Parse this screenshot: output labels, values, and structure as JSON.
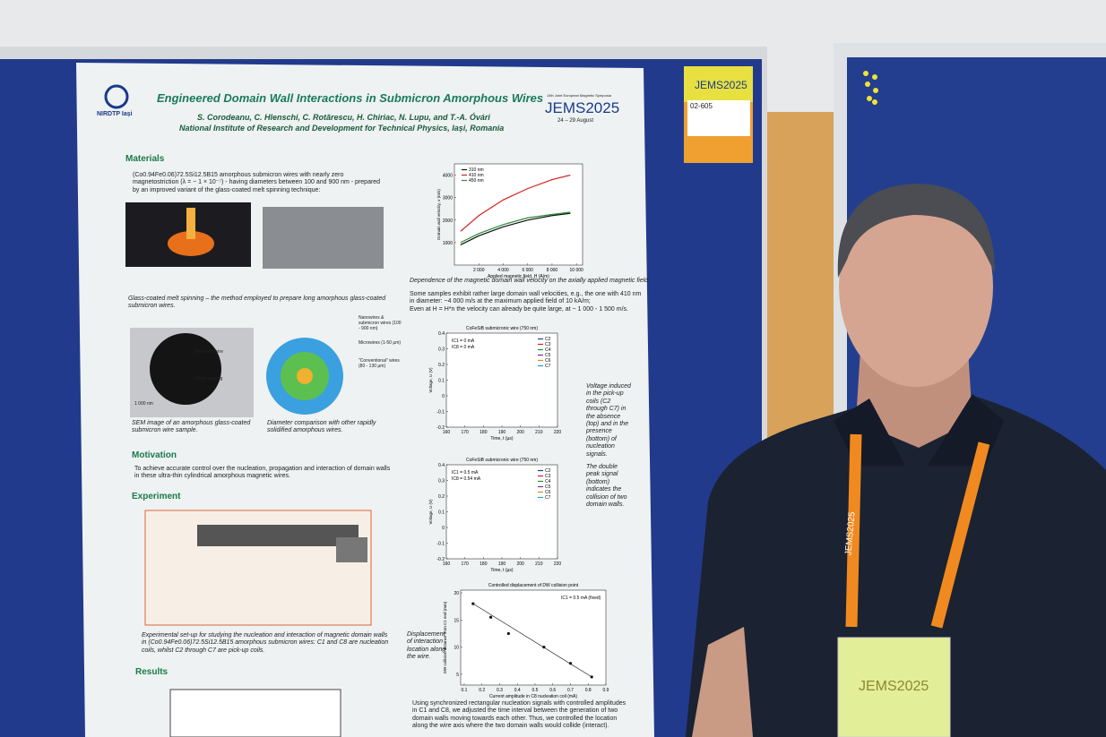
{
  "poster": {
    "logo": "NIRDTP Iași",
    "title": "Engineered Domain Wall Interactions in Submicron Amorphous Wires",
    "authors": "S. Corodeanu, C. Hlenschi, C. Rotărescu, H. Chiriac, N. Lupu, and T.-A. Óvári",
    "institute": "National Institute of Research and Development for Technical Physics, Iași, Romania",
    "conference": {
      "name": "14th Joint European Magnetic Symposia",
      "logo": "JEMS2025",
      "dates": "24 – 29 August"
    },
    "materials": {
      "heading": "Materials",
      "text": "(Co0.94Fe0.06)72.5Si12.5B15 amorphous submicron wires with nearly zero magnetostriction (λ = − 1 × 10⁻⁷) - having diameters between 100 and 900 nm - prepared by an improved variant of the glass-coated melt spinning technique:",
      "caption1": "Glass-coated melt spinning – the method employed to prepare long amorphous glass-coated submicron wires.",
      "sem_labels": [
        "Magnetic wire",
        "Glass coating",
        "1 000 nm"
      ],
      "diameter_labels": [
        "Nanowires & submicron wires (100 - 900 nm)",
        "Microwires (1-50 µm)",
        "\"Conventional\" wires (80 - 130 µm)"
      ],
      "caption2": "SEM image of an amorphous glass-coated submicron wire sample.",
      "caption3": "Diameter comparison with other rapidly solidified amorphous wires."
    },
    "motivation": {
      "heading": "Motivation",
      "text": "To achieve accurate control over the nucleation, propagation and interaction of domain walls in these ultra-thin cylindrical amorphous magnetic wires."
    },
    "experiment": {
      "heading": "Experiment",
      "caption": "Experimental set-up for studying the nucleation and interaction of magnetic domain walls in (Co0.94Fe0.06)72.5Si12.5B15 amorphous submicron wires: C1 and C8 are nucleation coils, whilst C2 through C7 are pick-up coils."
    },
    "results": {
      "heading": "Results"
    },
    "velocity_caption": "Dependence of the magnetic domain wall velocity on the axially applied magnetic field.",
    "velocity_bullets": [
      "Some samples exhibit rather large domain wall velocities, e.g., the one with 410 nm in diameter: ~4 000 m/s at the maximum applied field of 10 kA/m;",
      "Even at H = H*n the velocity can already be quite large, at ~ 1 000 - 1 500 m/s."
    ],
    "voltage_note": "Voltage induced in the pick-up coils (C2 through C7) in the absence (top) and in the presence (bottom) of nucleation signals.",
    "peak_note": "The double peak signal (bottom) indicates the collision of two domain walls.",
    "displacement_note": "Displacement of interaction location along the wire.",
    "bottom_caption": "Using synchronized rectangular nucleation signals with controlled amplitudes in C1 and C8, we adjusted the time interval between the generation of two domain walls moving towards each other. Thus, we controlled the location along the wire axis where the two domain walls would collide (interact)."
  },
  "sticker": {
    "logo": "JEMS2025",
    "code": "02-605"
  },
  "badge": {
    "lanyard": "JEMS2025",
    "card": "JEMS2025"
  },
  "chart_data": [
    {
      "type": "line",
      "xlabel": "Applied magnetic field, H (A/m)",
      "ylabel": "Domain wall velocity, v (m/s)",
      "x": [
        500,
        2000,
        4000,
        6000,
        8000,
        9500
      ],
      "xlim": [
        0,
        10500
      ],
      "ylim": [
        0,
        4500
      ],
      "xticks": [
        {
          "value": 2000,
          "label": "2 000"
        },
        {
          "value": 4000,
          "label": "4 000"
        },
        {
          "value": 6000,
          "label": "6 000"
        },
        {
          "value": 8000,
          "label": "8 000"
        },
        {
          "value": 10000,
          "label": "10 000"
        }
      ],
      "yticks": [
        1000,
        2000,
        3000,
        4000
      ],
      "series": [
        {
          "name": "310 nm",
          "color": "#111111",
          "values": [
            900,
            1300,
            1700,
            2000,
            2200,
            2300
          ]
        },
        {
          "name": "410 nm",
          "color": "#d62020",
          "values": [
            1500,
            2200,
            2900,
            3400,
            3800,
            4000
          ]
        },
        {
          "name": "450 nm",
          "color": "#2a8a3a",
          "values": [
            1000,
            1400,
            1800,
            2100,
            2250,
            2350
          ]
        }
      ]
    },
    {
      "type": "line",
      "title": "CoFeSiB submicronic wire (750 nm)",
      "xlabel": "Time, t (µs)",
      "ylabel": "Voltage, U (V)",
      "annotations": [
        "IC1 = 0 mA",
        "IC8 = 0 mA"
      ],
      "xlim": [
        160,
        220
      ],
      "ylim": [
        -0.2,
        0.4
      ],
      "xticks": [
        160,
        170,
        180,
        190,
        200,
        210,
        220
      ],
      "yticks": [
        -0.2,
        -0.1,
        0.0,
        0.1,
        0.2,
        0.3,
        0.4
      ],
      "series": [
        {
          "name": "C2",
          "color": "#1a3aa8"
        },
        {
          "name": "C3",
          "color": "#d62020"
        },
        {
          "name": "C4",
          "color": "#2a8a3a"
        },
        {
          "name": "C5",
          "color": "#7a2a9a"
        },
        {
          "name": "C6",
          "color": "#d09020"
        },
        {
          "name": "C7",
          "color": "#20a0c0"
        }
      ]
    },
    {
      "type": "line",
      "title": "CoFeSiB submicronic wire (750 nm)",
      "xlabel": "Time, t (µs)",
      "ylabel": "Voltage, U (V)",
      "annotations": [
        "IC1 = 0.5 mA",
        "IC8 = 0.54 mA"
      ],
      "xlim": [
        160,
        220
      ],
      "ylim": [
        -0.2,
        0.4
      ],
      "xticks": [
        160,
        170,
        180,
        190,
        200,
        210,
        220
      ],
      "yticks": [
        -0.2,
        -0.1,
        0.0,
        0.1,
        0.2,
        0.3,
        0.4
      ],
      "series": [
        {
          "name": "C2",
          "color": "#1a3aa8"
        },
        {
          "name": "C3",
          "color": "#d62020"
        },
        {
          "name": "C4",
          "color": "#2a8a3a"
        },
        {
          "name": "C5",
          "color": "#7a2a9a"
        },
        {
          "name": "C6",
          "color": "#d09020"
        },
        {
          "name": "C7",
          "color": "#20a0c0"
        }
      ]
    },
    {
      "type": "scatter",
      "title": "Controlled displacement of DW collision point",
      "xlabel": "Current amplitude in C8 nucleation coil (mA)",
      "ylabel": "DW collision distance from C1 end (mm)",
      "annotations": [
        "IC1 = 0.5 mA (fixed)"
      ],
      "xlim": [
        0.08,
        0.9
      ],
      "ylim": [
        3,
        20.5
      ],
      "xticks": [
        0.1,
        0.2,
        0.3,
        0.4,
        0.5,
        0.6,
        0.7,
        0.8,
        0.9
      ],
      "yticks": [
        5,
        10,
        15,
        20
      ],
      "series": [
        {
          "name": "DW collision point",
          "color": "#111111",
          "x": [
            0.15,
            0.25,
            0.35,
            0.55,
            0.7,
            0.82
          ],
          "values": [
            18,
            15.5,
            12.5,
            10,
            7,
            4.5
          ]
        }
      ]
    }
  ]
}
